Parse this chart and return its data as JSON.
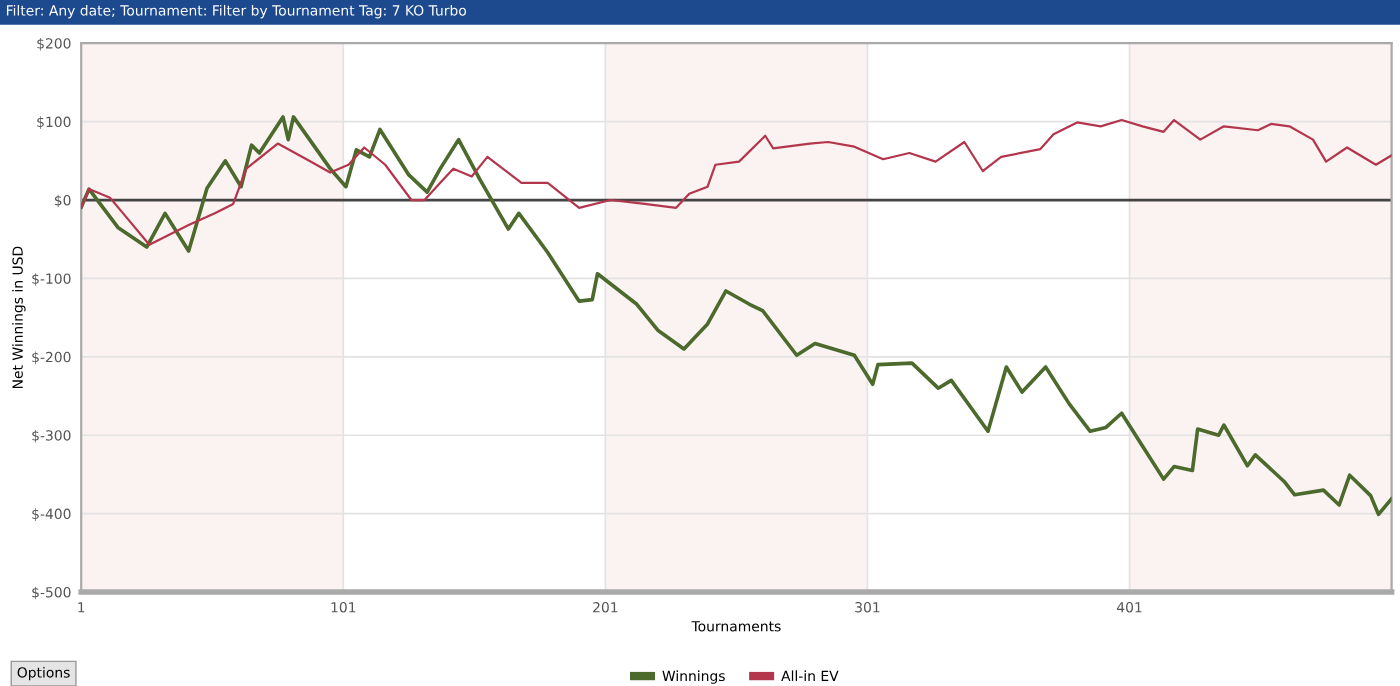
{
  "chart_data": {
    "type": "line",
    "title": "Filter: Any date; Tournament: Filter by Tournament Tag: 7 KO Turbo",
    "xlabel": "Tournaments",
    "ylabel": "Net Winnings in USD",
    "xlim": [
      1,
      501
    ],
    "xticks": [
      1,
      101,
      201,
      301,
      401
    ],
    "ylim": [
      -500,
      200
    ],
    "yticks": [
      {
        "value": 200,
        "label": "$200"
      },
      {
        "value": 100,
        "label": "$100"
      },
      {
        "value": 0,
        "label": "$0"
      },
      {
        "value": -100,
        "label": "$-100"
      },
      {
        "value": -200,
        "label": "$-200"
      },
      {
        "value": -300,
        "label": "$-300"
      },
      {
        "value": -400,
        "label": "$-400"
      },
      {
        "value": -500,
        "label": "$-500"
      }
    ],
    "grid": true,
    "legend": "bottom",
    "marker": "none",
    "line_style": "solid",
    "ref_lines": [
      {
        "axis": "y",
        "value": 0,
        "color": "#444444"
      }
    ],
    "bands": [
      {
        "axis": "x",
        "from": 1,
        "to": 101,
        "color": "#fbf2f2"
      },
      {
        "axis": "x",
        "from": 201,
        "to": 301,
        "color": "#fbf2f2"
      },
      {
        "axis": "x",
        "from": 401,
        "to": 501,
        "color": "#fbf2f2"
      }
    ],
    "annotations": [
      "Options"
    ],
    "series": [
      {
        "name": "Winnings",
        "color": "#4b6a2c",
        "x": [
          1,
          4,
          15,
          26,
          33,
          42,
          49,
          56,
          62,
          66,
          69,
          78,
          80,
          82,
          96,
          102,
          106,
          111,
          115,
          126,
          133,
          138,
          145,
          153,
          164,
          168,
          179,
          191,
          196,
          198,
          213,
          221,
          231,
          240,
          247,
          256,
          261,
          274,
          281,
          296,
          303,
          305,
          318,
          328,
          333,
          347,
          354,
          360,
          369,
          378,
          386,
          392,
          398,
          406,
          414,
          418,
          425,
          427,
          435,
          437,
          446,
          449,
          460,
          464,
          475,
          481,
          485,
          493,
          496,
          501
        ],
        "values": [
          -9,
          14,
          -35,
          -60,
          -17,
          -65,
          15,
          50,
          17,
          70,
          60,
          106,
          77,
          106,
          40,
          17,
          64,
          55,
          90,
          32,
          10,
          40,
          77,
          27,
          -37,
          -17,
          -67,
          -129,
          -127,
          -94,
          -133,
          -166,
          -190,
          -158,
          -116,
          -133,
          -141,
          -198,
          -183,
          -198,
          -235,
          -210,
          -208,
          -240,
          -230,
          -295,
          -213,
          -245,
          -213,
          -260,
          -295,
          -290,
          -272,
          -314,
          -356,
          -340,
          -345,
          -292,
          -300,
          -287,
          -339,
          -325,
          -359,
          -376,
          -370,
          -389,
          -351,
          -377,
          -401,
          -381
        ]
      },
      {
        "name": "All-in EV",
        "color": "#b3364c",
        "x": [
          1,
          4,
          12,
          17,
          27,
          42,
          52,
          59,
          64,
          73,
          76,
          88,
          96,
          103,
          109,
          117,
          127,
          132,
          138,
          143,
          150,
          156,
          169,
          179,
          191,
          203,
          216,
          228,
          233,
          240,
          243,
          252,
          262,
          265,
          279,
          286,
          296,
          307,
          317,
          327,
          338,
          345,
          352,
          367,
          372,
          381,
          390,
          398,
          406,
          414,
          418,
          428,
          437,
          450,
          455,
          462,
          471,
          476,
          484,
          495,
          501
        ],
        "values": [
          -10,
          14,
          3,
          -17,
          -57,
          -32,
          -17,
          -5,
          40,
          64,
          72,
          50,
          35,
          45,
          67,
          45,
          0,
          0,
          22,
          40,
          30,
          55,
          22,
          22,
          -10,
          0,
          -5,
          -10,
          8,
          17,
          45,
          49,
          82,
          66,
          72,
          74,
          68,
          52,
          60,
          49,
          74,
          37,
          55,
          65,
          84,
          99,
          94,
          102,
          94,
          87,
          102,
          77,
          94,
          89,
          97,
          94,
          77,
          49,
          67,
          45,
          57
        ]
      }
    ]
  }
}
